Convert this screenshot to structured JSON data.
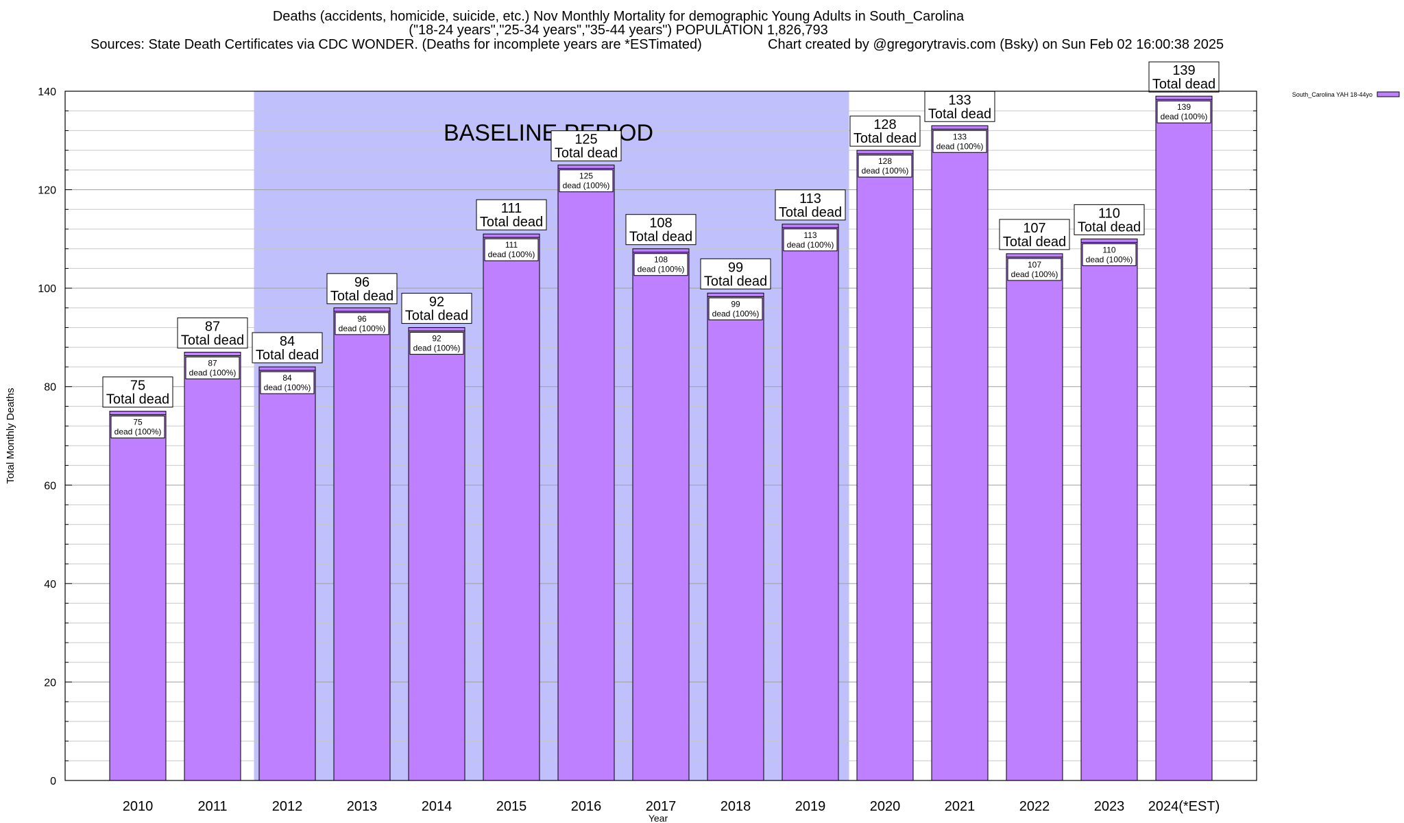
{
  "title": {
    "line1": "Deaths (accidents, homicide, suicide, etc.) Nov Monthly Mortality for demographic Young Adults in South_Carolina",
    "line2": "(\"18-24 years\",\"25-34 years\",\"35-44 years\") POPULATION 1,826,793",
    "sources": "Sources: State Death Certificates via CDC WONDER. (Deaths for incomplete years are *ESTimated)",
    "credit": "Chart created by @gregorytravis.com (Bsky) on Sun Feb 02 16:00:38 2025"
  },
  "chart_data": {
    "type": "bar",
    "categories": [
      "2010",
      "2011",
      "2012",
      "2013",
      "2014",
      "2015",
      "2016",
      "2017",
      "2018",
      "2019",
      "2020",
      "2021",
      "2022",
      "2023",
      "2024(*EST)"
    ],
    "series": [
      {
        "name": "South_Carolina YAH 18-44yo",
        "values": [
          75,
          87,
          84,
          96,
          92,
          111,
          125,
          108,
          99,
          113,
          128,
          133,
          107,
          110,
          139
        ],
        "color": "#bf80ff"
      }
    ],
    "top_label_text": "Total dead",
    "inner_label_text": "dead (100%)",
    "xlabel": "Year",
    "ylabel": "Total Monthly Deaths",
    "ylim": [
      0,
      140
    ],
    "yticks": [
      0,
      20,
      40,
      60,
      80,
      100,
      120,
      140
    ],
    "minor_grid_step": 4,
    "grid": true,
    "legend_position": "top-right",
    "baseline_period": {
      "label": "BASELINE PERIOD",
      "from": "2012",
      "to": "2019",
      "color": "#c0c0fc"
    }
  }
}
